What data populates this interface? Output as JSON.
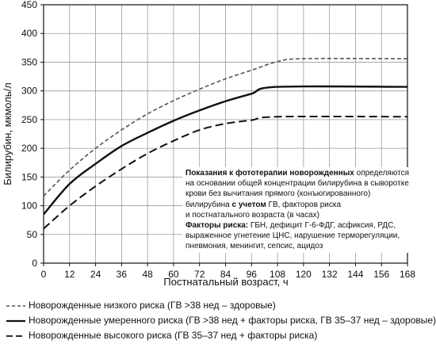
{
  "chart_data": {
    "type": "line",
    "xlabel": "Постнатальный возраст, ч",
    "ylabel": "Билирубин, мкмоль/л",
    "xlim": [
      0,
      168
    ],
    "ylim": [
      0,
      450
    ],
    "xticks": [
      0,
      12,
      24,
      36,
      48,
      60,
      72,
      84,
      96,
      108,
      120,
      132,
      144,
      156,
      168
    ],
    "yticks": [
      0,
      50,
      100,
      150,
      200,
      250,
      300,
      350,
      400,
      450
    ],
    "grid": true,
    "legend_position": "bottom",
    "series": [
      {
        "name": "Новорожденные низкого риска (ГВ >38 нед – здоровые)",
        "style": "short-dash",
        "color": "#555555",
        "x": [
          0,
          12,
          24,
          36,
          48,
          60,
          72,
          84,
          96,
          108,
          120,
          168
        ],
        "y": [
          117,
          162,
          200,
          232,
          260,
          283,
          303,
          321,
          336,
          351,
          356,
          356
        ]
      },
      {
        "name": "Новорожденные умеренного риска (ГВ >38 нед + факторы риска, ГВ 35–37 нед – здоровые)",
        "style": "solid",
        "color": "#111111",
        "x": [
          0,
          12,
          24,
          36,
          48,
          60,
          72,
          84,
          96,
          108,
          168
        ],
        "y": [
          85,
          138,
          173,
          204,
          227,
          248,
          266,
          282,
          295,
          307,
          307
        ]
      },
      {
        "name": "Новорожденные высокого риска (ГВ 35–37 нед + факторы риска)",
        "style": "long-dash",
        "color": "#111111",
        "x": [
          0,
          12,
          24,
          36,
          48,
          60,
          72,
          84,
          96,
          108,
          168
        ],
        "y": [
          60,
          100,
          134,
          164,
          191,
          213,
          232,
          243,
          249,
          255,
          255
        ]
      }
    ]
  },
  "note": {
    "title": "Показания к фототерапии новорожденных",
    "line1": " определяются",
    "line2": "на основании общей концентрации билирубина в сыворотке",
    "line3": "крови без вычитания прямого (конъюгированного)",
    "line4a": "билирубина ",
    "line4b": "с учетом",
    "line4c": " ГВ, факторов риска",
    "line5": "и постнатального возраста (в часах)",
    "factors_label": "Факторы риска:",
    "factors_1": " ГБН, дефицит Г-6-ФДГ, асфиксия, РДС,",
    "factors_2": "выраженное угнетение ЦНС, нарушение терморегуляции,",
    "factors_3": "пневмония, менингит, сепсис, ацидоз"
  }
}
